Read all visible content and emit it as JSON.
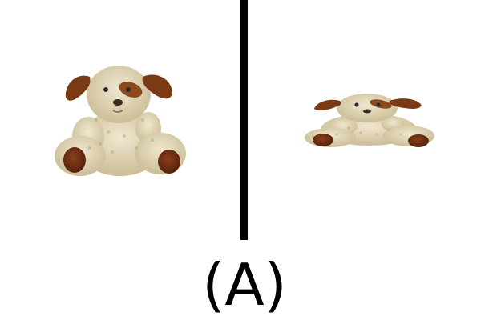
{
  "caption": "(A)",
  "colors": {
    "background": "#ffffff",
    "divider": "#000000",
    "fur": "#e6dcc0",
    "fur_shadow": "#c9bc98",
    "ear": "#7a3a14",
    "paw_pad": "#6b2e12",
    "eye": "#2a2a2a"
  },
  "panels": [
    {
      "subject": "teddy-dog-plush-front-view"
    },
    {
      "subject": "teddy-dog-plush-flattened-view"
    }
  ]
}
